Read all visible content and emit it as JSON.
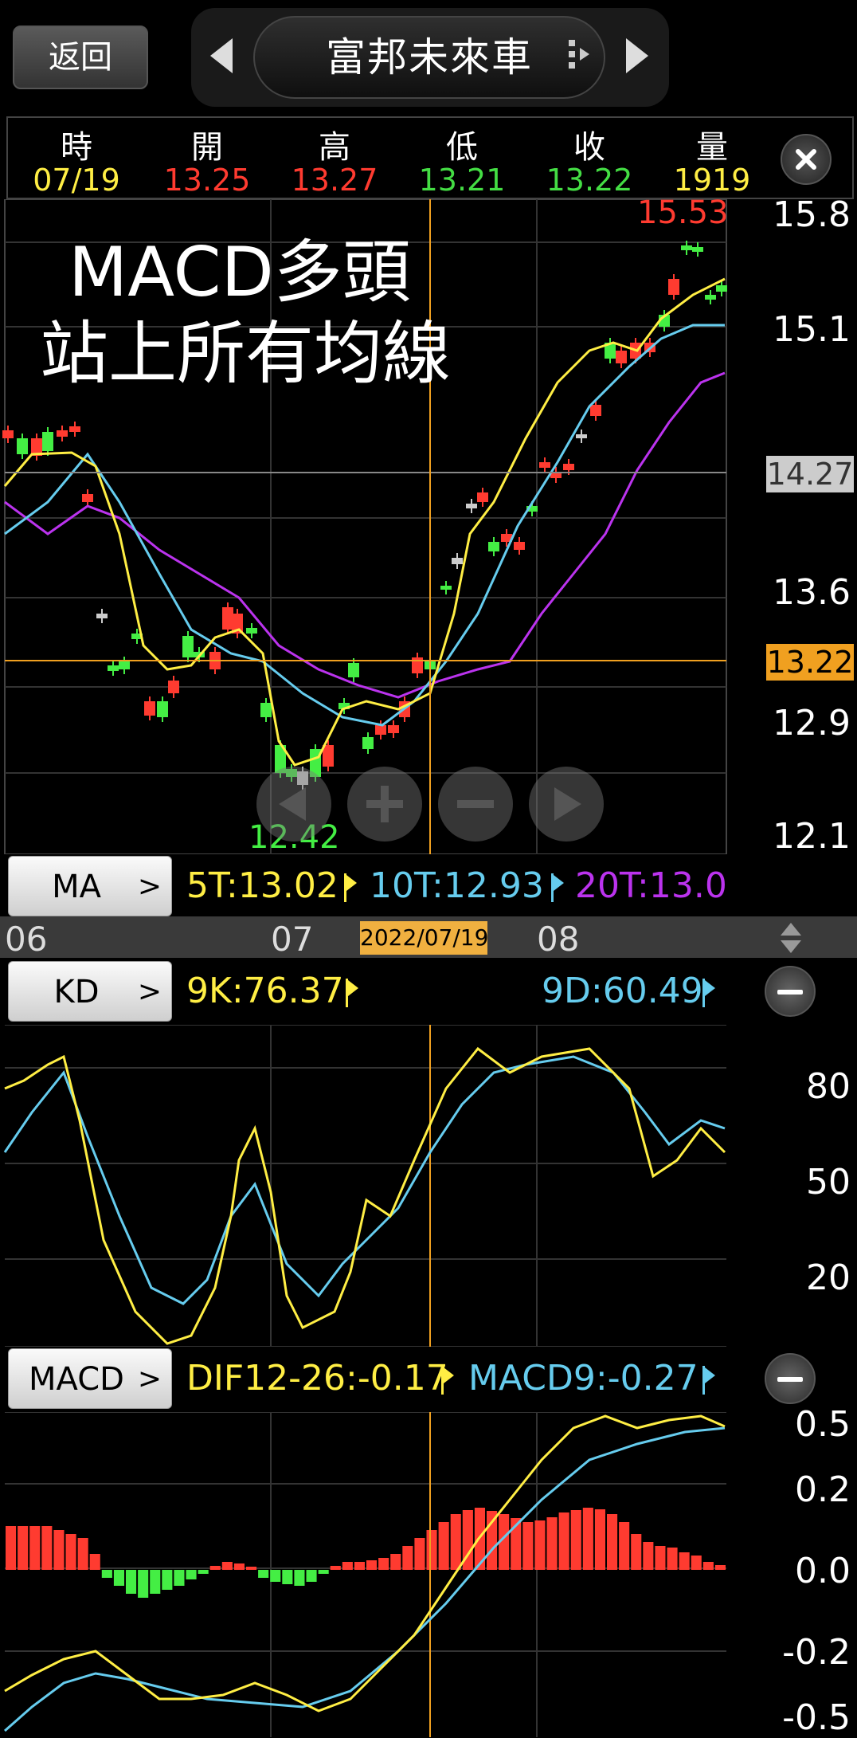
{
  "nav": {
    "back_label": "返回",
    "stock_name": "富邦未來車"
  },
  "ohlc": {
    "labels": [
      "時",
      "開",
      "高",
      "低",
      "收",
      "量"
    ],
    "values": [
      "07/19",
      "13.25",
      "13.27",
      "13.21",
      "13.22",
      "1919"
    ],
    "colors": [
      "#ffee44",
      "#ff3b30",
      "#ff3b30",
      "#44dd44",
      "#44dd44",
      "#ffee44"
    ]
  },
  "price_chart": {
    "overlay_line1": "MACD多頭",
    "overlay_line2": "站上所有均線",
    "high_label": "15.53",
    "low_label": "12.42",
    "y_ticks": [
      "15.8",
      "15.1",
      "14.27",
      "13.6",
      "13.22",
      "12.9",
      "12.1"
    ],
    "crosshair_price": "13.22",
    "hline_price": "14.27"
  },
  "ma_bar": {
    "button_label": "MA",
    "ma5": "5T:13.02",
    "ma10": "10T:12.93",
    "ma20": "20T:13.0"
  },
  "date_axis": {
    "labels": [
      "06",
      "07",
      "08"
    ],
    "selected_date": "2022/07/19"
  },
  "kd": {
    "button_label": "KD",
    "k_label": "9K:76.37",
    "d_label": "9D:60.49",
    "y_ticks": [
      "80",
      "50",
      "20"
    ]
  },
  "macd": {
    "button_label": "MACD",
    "dif_label": "DIF12-26:-0.17",
    "macd_label": "MACD9:-0.27",
    "y_ticks": [
      "0.5",
      "0.2",
      "0.0",
      "-0.2",
      "-0.5"
    ]
  },
  "colors": {
    "up": "#ff3b30",
    "down": "#44ee44",
    "ma5": "#ffee44",
    "ma10": "#66ccee",
    "ma20": "#bb33ee",
    "crosshair": "#f0a020"
  }
}
